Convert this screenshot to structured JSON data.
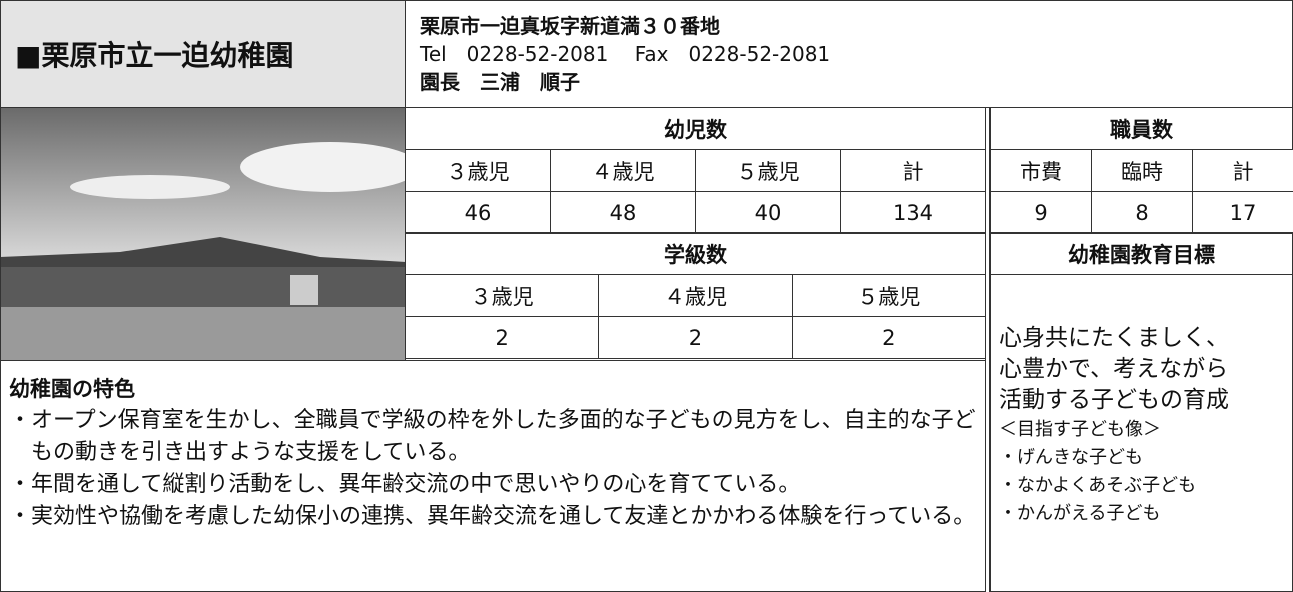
{
  "header": {
    "title": "■栗原市立一迫幼稚園",
    "address": "栗原市一迫真坂字新道満３０番地",
    "contact": "Tel　0228-52-2081　 Fax　0228-52-2081",
    "principal": "園長　三浦　順子"
  },
  "children": {
    "title": "幼児数",
    "columns": [
      "３歳児",
      "４歳児",
      "５歳児",
      "計"
    ],
    "values": [
      46,
      48,
      40,
      134
    ]
  },
  "staff": {
    "title": "職員数",
    "columns": [
      "市費",
      "臨時",
      "計"
    ],
    "values": [
      9,
      8,
      17
    ]
  },
  "classes": {
    "title": "学級数",
    "columns": [
      "３歳児",
      "４歳児",
      "５歳児"
    ],
    "values": [
      2,
      2,
      2
    ]
  },
  "goals": {
    "title": "幼稚園教育目標",
    "main": [
      "心身共にたくましく、",
      "心豊かで、考えながら",
      "活動する子どもの育成"
    ],
    "subtitle": "＜目指す子ども像＞",
    "items": [
      "・げんきな子ども",
      "・なかよくあそぶ子ども",
      "・かんがえる子ども"
    ]
  },
  "features": {
    "title": "幼稚園の特色",
    "items": [
      "・オープン保育室を生かし、全職員で学級の枠を外した多面的な子どもの見方をし、自主的な子どもの動きを引き出すような支援をしている。",
      "・年間を通して縦割り活動をし、異年齢交流の中で思いやりの心を育てている。",
      "・実効性や協働を考慮した幼保小の連携、異年齢交流を通して友達とかかわる体験を行っている。"
    ]
  }
}
